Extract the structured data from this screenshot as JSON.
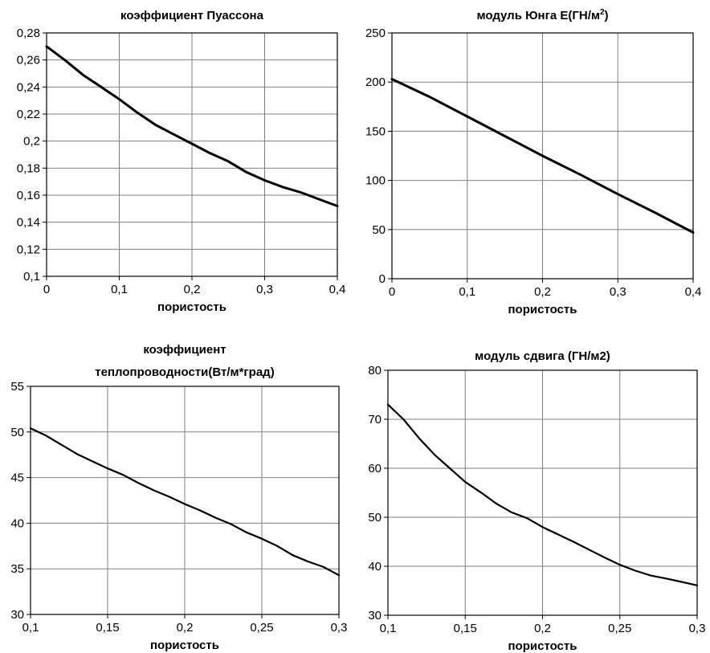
{
  "chart_data": [
    {
      "type": "line",
      "title": "коэффициент Пуассона",
      "title_sup": "",
      "title_tail": "",
      "title_line2": "",
      "xlabel": "пористость",
      "ylabel": "",
      "xlim": [
        0,
        0.4
      ],
      "ylim": [
        0.1,
        0.28
      ],
      "grid": true,
      "x_ticks": [
        "0",
        "0,1",
        "0,2",
        "0,3",
        "0,4"
      ],
      "y_ticks": [
        "0,1",
        "0,12",
        "0,14",
        "0,16",
        "0,18",
        "0,2",
        "0,22",
        "0,24",
        "0,26",
        "0,28"
      ],
      "series": [
        {
          "x": [
            0,
            0.025,
            0.05,
            0.075,
            0.1,
            0.125,
            0.15,
            0.175,
            0.2,
            0.225,
            0.25,
            0.275,
            0.3,
            0.325,
            0.35,
            0.375,
            0.4
          ],
          "y": [
            0.27,
            0.26,
            0.249,
            0.24,
            0.231,
            0.221,
            0.212,
            0.205,
            0.198,
            0.191,
            0.185,
            0.177,
            0.171,
            0.166,
            0.162,
            0.157,
            0.152
          ]
        }
      ]
    },
    {
      "type": "line",
      "title": "модуль Юнга E(ГН/м",
      "title_sup": "2",
      "title_tail": ")",
      "title_line2": "",
      "xlabel": "пористость",
      "ylabel": "",
      "xlim": [
        0,
        0.4
      ],
      "ylim": [
        0,
        250
      ],
      "grid": true,
      "x_ticks": [
        "0",
        "0,1",
        "0,2",
        "0,3",
        "0,4"
      ],
      "y_ticks": [
        "0",
        "50",
        "100",
        "150",
        "200",
        "250"
      ],
      "series": [
        {
          "x": [
            0,
            0.05,
            0.1,
            0.15,
            0.2,
            0.25,
            0.3,
            0.35,
            0.4
          ],
          "y": [
            203,
            185,
            165,
            145,
            125,
            106,
            86,
            67,
            47
          ]
        }
      ]
    },
    {
      "type": "line",
      "title": "коэффициент",
      "title_sup": "",
      "title_tail": "",
      "title_line2": "теплопроводности(Вт/м*град)",
      "xlabel": "пористость",
      "ylabel": "",
      "xlim": [
        0.1,
        0.3
      ],
      "ylim": [
        30,
        55
      ],
      "grid": true,
      "x_ticks": [
        "0,1",
        "0,15",
        "0,2",
        "0,25",
        "0,3"
      ],
      "y_ticks": [
        "30",
        "35",
        "40",
        "45",
        "50",
        "55"
      ],
      "series": [
        {
          "x": [
            0.1,
            0.11,
            0.12,
            0.13,
            0.14,
            0.15,
            0.16,
            0.17,
            0.18,
            0.19,
            0.2,
            0.21,
            0.22,
            0.23,
            0.24,
            0.25,
            0.26,
            0.27,
            0.28,
            0.29,
            0.3
          ],
          "y": [
            50.4,
            49.6,
            48.6,
            47.6,
            46.8,
            46.0,
            45.3,
            44.4,
            43.6,
            42.9,
            42.1,
            41.4,
            40.6,
            39.9,
            39.0,
            38.3,
            37.5,
            36.5,
            35.8,
            35.2,
            34.3
          ]
        }
      ]
    },
    {
      "type": "line",
      "title": "модуль сдвига (ГН/м2)",
      "title_sup": "",
      "title_tail": "",
      "title_line2": "",
      "xlabel": "пористость",
      "ylabel": "",
      "xlim": [
        0.1,
        0.3
      ],
      "ylim": [
        30,
        80
      ],
      "grid": true,
      "x_ticks": [
        "0,1",
        "0,15",
        "0,2",
        "0,25",
        "0,3"
      ],
      "y_ticks": [
        "30",
        "40",
        "50",
        "60",
        "70",
        "80"
      ],
      "series": [
        {
          "x": [
            0.1,
            0.11,
            0.12,
            0.13,
            0.14,
            0.15,
            0.16,
            0.17,
            0.18,
            0.19,
            0.2,
            0.21,
            0.22,
            0.23,
            0.24,
            0.25,
            0.26,
            0.27,
            0.28,
            0.29,
            0.3
          ],
          "y": [
            73.0,
            70.0,
            66.2,
            62.8,
            60.0,
            57.2,
            55.1,
            52.8,
            51.0,
            49.8,
            48.0,
            46.5,
            45.0,
            43.4,
            41.8,
            40.3,
            39.1,
            38.1,
            37.5,
            36.8,
            36.1
          ]
        }
      ]
    }
  ]
}
